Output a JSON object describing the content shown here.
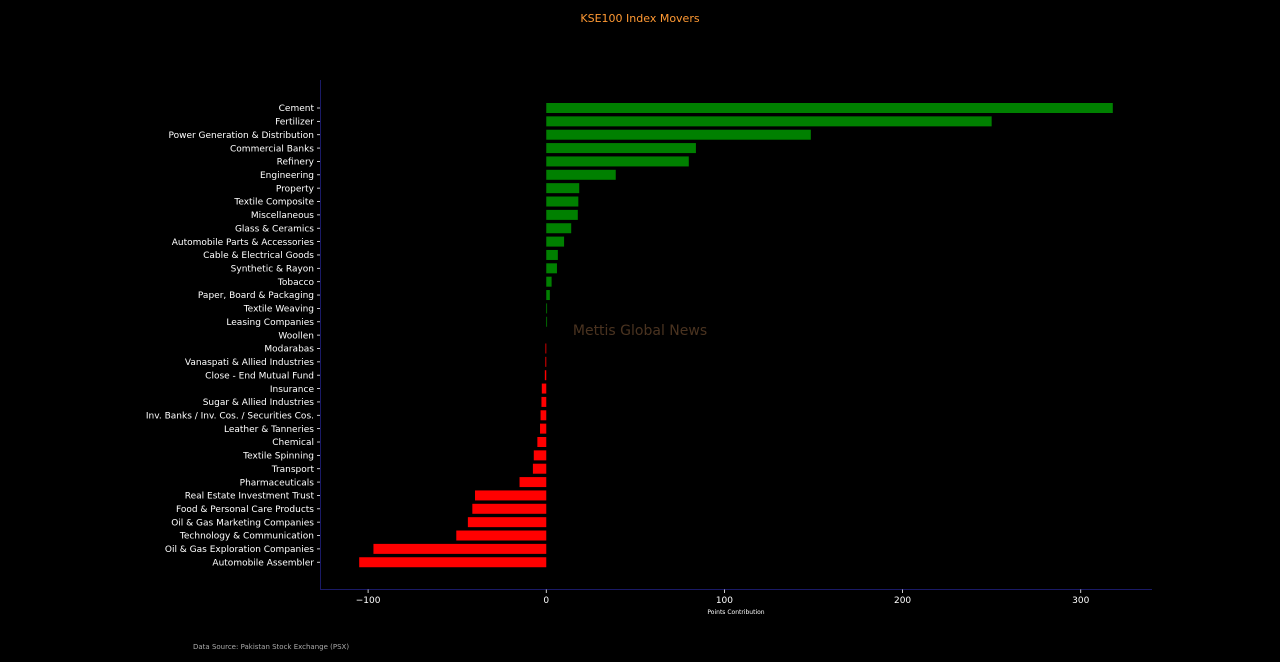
{
  "chart_data": {
    "type": "bar",
    "orientation": "horizontal",
    "title": "KSE100 Index Movers",
    "xlabel": "Points Contribution",
    "ylabel": "",
    "xlim": [
      -127,
      340
    ],
    "xticks": [
      -100,
      0,
      100,
      200,
      300
    ],
    "xtick_labels": [
      "−100",
      "0",
      "100",
      "200",
      "300"
    ],
    "grid": false,
    "colors": {
      "positive": "#008000",
      "negative": "#ff0000",
      "title": "#ff9933",
      "watermark": "#4a3320",
      "axis": "#1a1a66",
      "background": "#000000",
      "text": "#ffffff"
    },
    "watermark": "Mettis Global News",
    "source": "Data Source: Pakistan Stock Exchange (PSX)",
    "categories": [
      "Cement",
      "Fertilizer",
      "Power Generation & Distribution",
      "Commercial Banks",
      "Refinery",
      "Engineering",
      "Property",
      "Textile Composite",
      "Miscellaneous",
      "Glass & Ceramics",
      "Automobile Parts & Accessories",
      "Cable & Electrical Goods",
      "Synthetic & Rayon",
      "Tobacco",
      "Paper, Board & Packaging",
      "Textile Weaving",
      "Leasing Companies",
      "Woollen",
      "Modarabas",
      "Vanaspati & Allied Industries",
      "Close - End Mutual Fund",
      "Insurance",
      "Sugar & Allied Industries",
      "Inv. Banks / Inv. Cos. / Securities Cos.",
      "Leather & Tanneries",
      "Chemical",
      "Textile Spinning",
      "Transport",
      "Pharmaceuticals",
      "Real Estate Investment Trust",
      "Food & Personal Care Products",
      "Oil & Gas Marketing Companies",
      "Technology & Communication",
      "Oil & Gas Exploration Companies",
      "Automobile Assembler"
    ],
    "values": [
      318,
      250,
      148.5,
      84,
      80,
      39,
      18.5,
      18,
      17.7,
      14,
      10,
      6.5,
      6,
      3,
      2,
      0.4,
      0.3,
      0,
      -0.3,
      -0.5,
      -0.8,
      -2.5,
      -2.7,
      -3.2,
      -3.5,
      -5,
      -7,
      -7.5,
      -15,
      -40,
      -41.5,
      -44,
      -50.5,
      -97,
      -105
    ]
  }
}
